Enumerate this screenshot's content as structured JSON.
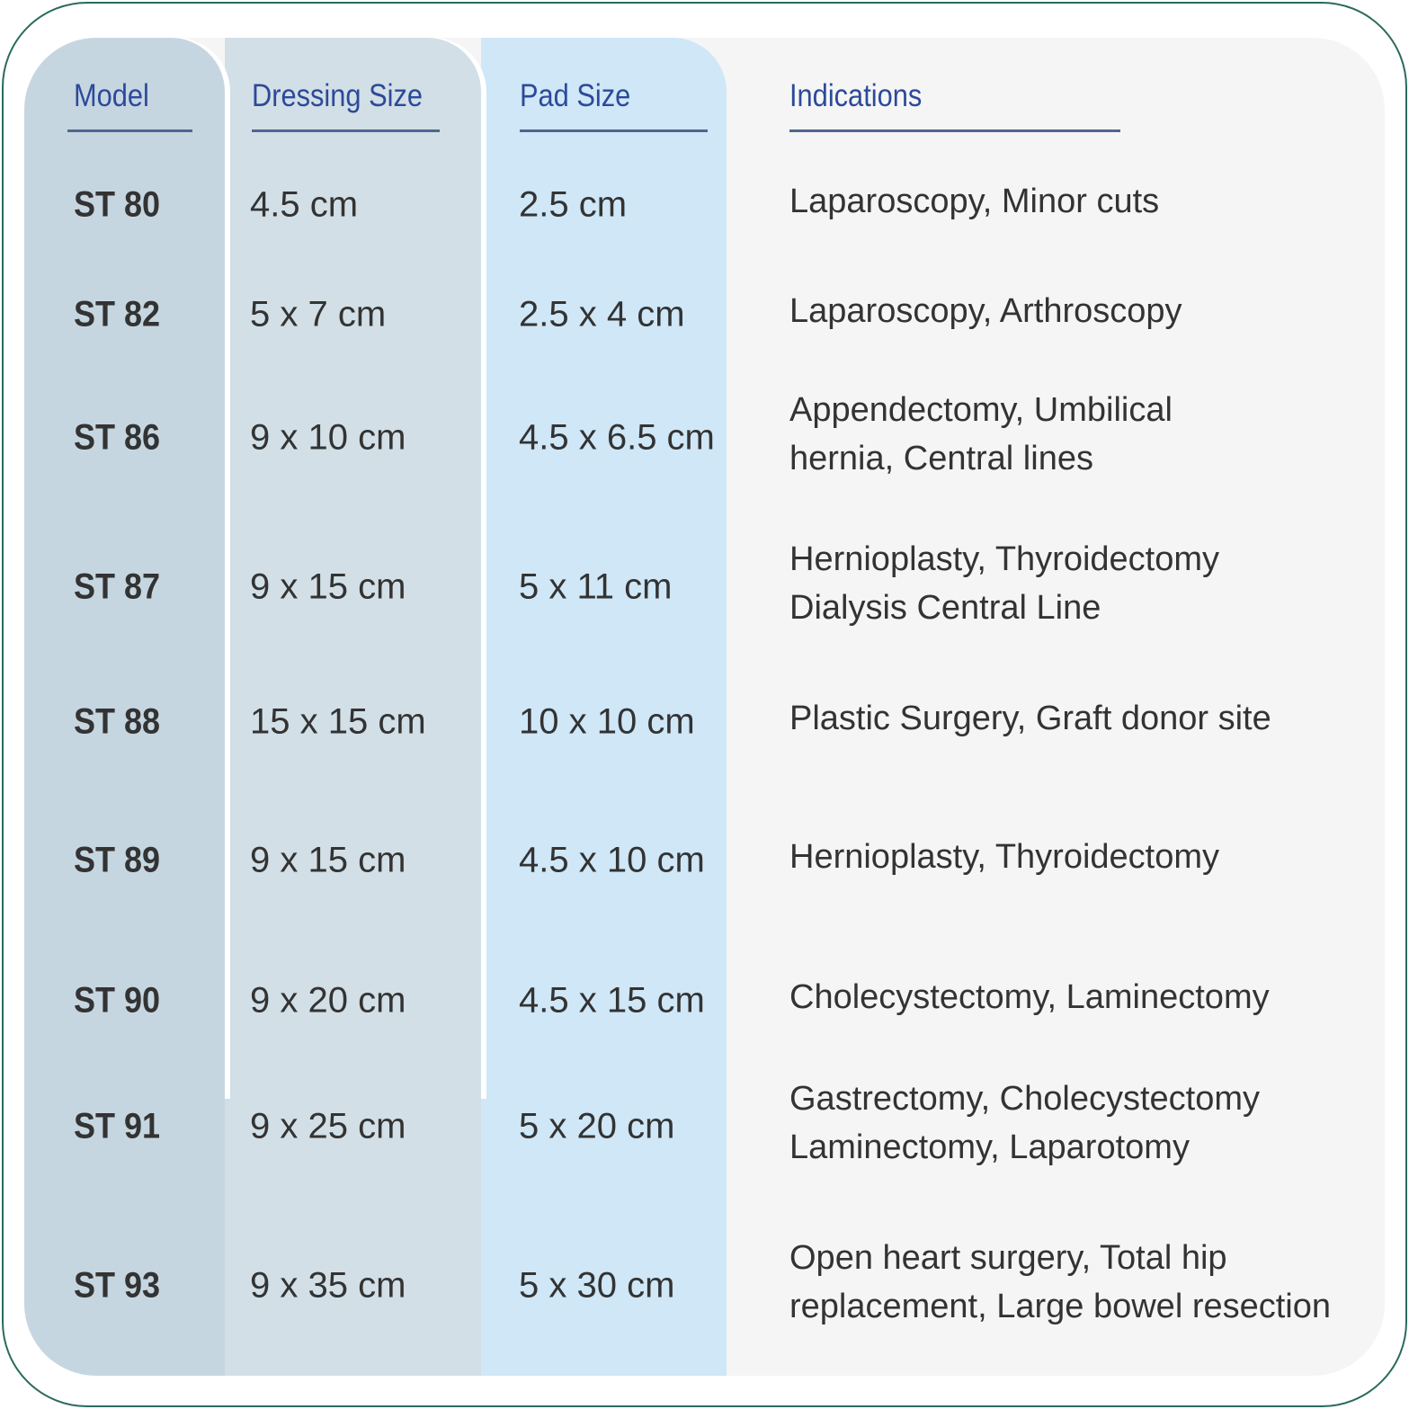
{
  "headers": {
    "model": "Model",
    "dressing_size": "Dressing Size",
    "pad_size": "Pad Size",
    "indications": "Indications"
  },
  "rows": [
    {
      "model": "ST 80",
      "dressing_size": "4.5 cm",
      "pad_size": "2.5 cm",
      "indications": [
        "Laparoscopy, Minor cuts"
      ]
    },
    {
      "model": "ST 82",
      "dressing_size": "5 x 7 cm",
      "pad_size": "2.5 x 4 cm",
      "indications": [
        "Laparoscopy, Arthroscopy"
      ]
    },
    {
      "model": "ST 86",
      "dressing_size": "9 x 10 cm",
      "pad_size": "4.5 x 6.5 cm",
      "indications": [
        "Appendectomy, Umbilical",
        "hernia, Central lines"
      ]
    },
    {
      "model": "ST 87",
      "dressing_size": "9 x 15 cm",
      "pad_size": "5 x 11 cm",
      "indications": [
        "Hernioplasty, Thyroidectomy",
        "Dialysis Central Line"
      ]
    },
    {
      "model": "ST 88",
      "dressing_size": "15 x 15 cm",
      "pad_size": "10 x 10 cm",
      "indications": [
        "Plastic Surgery, Graft donor site"
      ]
    },
    {
      "model": "ST 89",
      "dressing_size": "9 x 15 cm",
      "pad_size": "4.5 x 10 cm",
      "indications": [
        "Hernioplasty, Thyroidectomy"
      ]
    },
    {
      "model": "ST 90",
      "dressing_size": "9 x 20 cm",
      "pad_size": "4.5 x 15 cm",
      "indications": [
        "Cholecystectomy, Laminectomy"
      ]
    },
    {
      "model": "ST 91",
      "dressing_size": "9 x 25 cm",
      "pad_size": "5 x 20 cm",
      "indications": [
        "Gastrectomy, Cholecystectomy",
        "Laminectomy, Laparotomy"
      ]
    },
    {
      "model": "ST 93",
      "dressing_size": "9 x 35 cm",
      "pad_size": "5 x 30 cm",
      "indications": [
        "Open heart surgery, Total hip",
        "replacement, Large bowel resection"
      ]
    }
  ],
  "colors": {
    "border": "#2a6a5e",
    "header_text": "#2c4a9a",
    "model_col": "#c6d6e1",
    "dressing_col": "#d2dfe6",
    "pad_col": "#cfe7f7",
    "indications_col": "#f5f5f5"
  }
}
